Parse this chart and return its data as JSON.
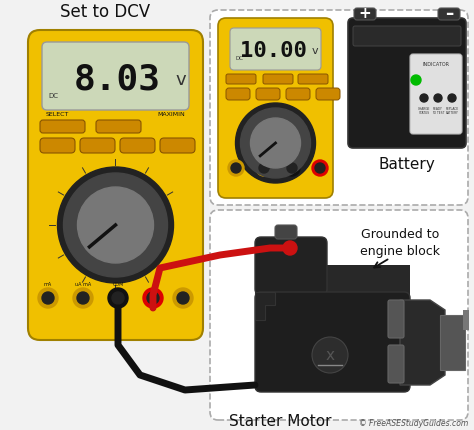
{
  "bg_color": "#f2f2f2",
  "label_set_dcv": "Set to DCV",
  "label_battery": "Battery",
  "label_grounded": "Grounded to\nengine block",
  "label_starter": "Starter Motor",
  "label_copyright": "© FreeASEStudyGuides.com",
  "meter1_display": "8.03",
  "meter1_unit": "v",
  "meter2_display": "10.00",
  "meter2_unit": "v",
  "meter1_color": "#f0c000",
  "meter2_color": "#f0c000",
  "screen_color": "#ccd8b8",
  "wire_black": "#111111",
  "wire_red": "#cc1111",
  "dashed_box_color": "#aaaaaa",
  "knob_outer": "#222222",
  "knob_mid": "#444444",
  "knob_inner": "#777777"
}
